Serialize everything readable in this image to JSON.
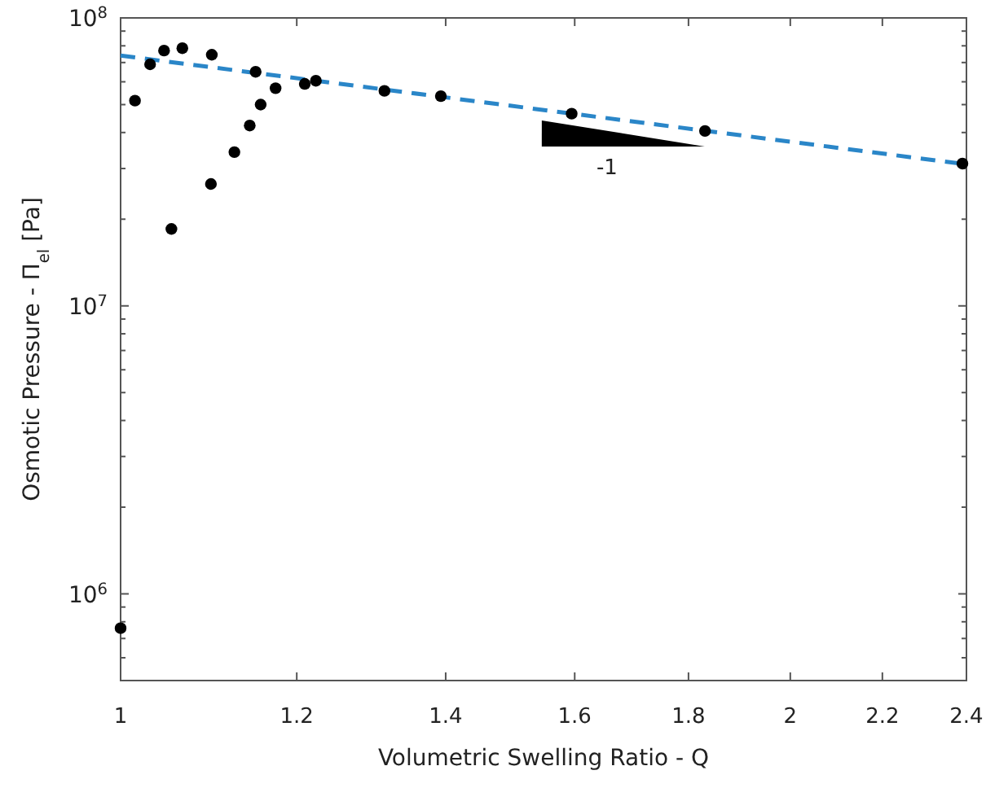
{
  "chart_data": {
    "type": "scatter",
    "xlabel": "Volumetric Swelling Ratio - Q",
    "ylabel": "Osmotic Pressure - Π$_{el}$ [Pa]",
    "log": "xy",
    "grid": false,
    "xlim": [
      1,
      2.4
    ],
    "xticks": [
      1,
      1.2,
      1.4,
      1.6,
      1.8,
      2,
      2.2,
      2.4
    ],
    "ylim": [
      500000,
      100000000
    ],
    "yticks": [
      {
        "value": 1000000,
        "label": "10$^{6}$"
      },
      {
        "value": 10000000,
        "label": "10$^{7}$"
      },
      {
        "value": 100000000,
        "label": "10$^{8}$"
      }
    ],
    "annotations": [
      "-1"
    ],
    "series": [
      {
        "color": "#000000",
        "marker": "circle",
        "x": [
          1.0,
          1.015,
          1.031,
          1.046,
          1.054,
          1.066,
          1.098,
          1.099,
          1.125,
          1.143,
          1.15,
          1.156,
          1.174,
          1.21,
          1.224,
          1.314,
          1.393,
          1.595,
          1.831,
          2.39
        ],
        "values": [
          760000,
          51600000,
          69000000,
          77000000,
          18500000,
          78500000,
          26500000,
          74500000,
          34200000,
          42300000,
          65000000,
          50000000,
          57000000,
          59000000,
          60500000,
          55800000,
          53500000,
          46500000,
          40500000,
          31200000
        ]
      },
      {
        "type": "line",
        "color": "#2a86c8",
        "line_style": "dashed",
        "marker": "none",
        "x": [
          1,
          2.4
        ],
        "values": [
          74000000,
          31000000
        ]
      }
    ]
  }
}
